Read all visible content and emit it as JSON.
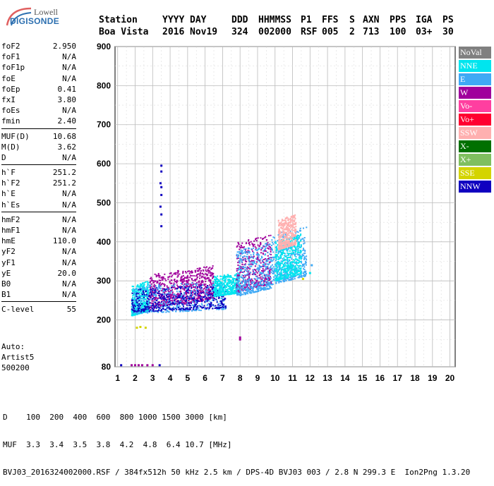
{
  "logo": {
    "line1": "Lowell",
    "line2": "DIGISONDE"
  },
  "header": {
    "labels": [
      "Station",
      "YYYY",
      "DAY",
      "DDD",
      "HHMMSS",
      "P1",
      "FFS",
      "S",
      "AXN",
      "PPS",
      "IGA",
      "PS"
    ],
    "values": [
      "Boa Vista",
      "2016",
      "Nov19",
      "324",
      "002000",
      "RSF",
      "005",
      "2",
      "713",
      "100",
      "03+",
      "30"
    ]
  },
  "params": {
    "group1": [
      {
        "label": "foF2",
        "value": "2.950"
      },
      {
        "label": "foF1",
        "value": "N/A"
      },
      {
        "label": "foF1p",
        "value": "N/A"
      },
      {
        "label": "foE",
        "value": "N/A"
      },
      {
        "label": "foEp",
        "value": "0.41"
      },
      {
        "label": "fxI",
        "value": "3.80"
      },
      {
        "label": "foEs",
        "value": "N/A"
      },
      {
        "label": "fmin",
        "value": "2.40"
      }
    ],
    "group2": [
      {
        "label": "MUF(D)",
        "value": "10.68"
      },
      {
        "label": "M(D)",
        "value": "3.62"
      },
      {
        "label": "D",
        "value": "N/A"
      }
    ],
    "group3": [
      {
        "label": "h`F",
        "value": "251.2"
      },
      {
        "label": "h`F2",
        "value": "251.2"
      },
      {
        "label": "h`E",
        "value": "N/A"
      },
      {
        "label": "h`Es",
        "value": "N/A"
      }
    ],
    "group4": [
      {
        "label": "hmF2",
        "value": "N/A"
      },
      {
        "label": "hmF1",
        "value": "N/A"
      },
      {
        "label": "hmE",
        "value": "110.0"
      },
      {
        "label": "yF2",
        "value": "N/A"
      },
      {
        "label": "yF1",
        "value": "N/A"
      },
      {
        "label": "yE",
        "value": "20.0"
      },
      {
        "label": "B0",
        "value": "N/A"
      },
      {
        "label": "B1",
        "value": "N/A"
      }
    ],
    "group5": [
      {
        "label": "C-level",
        "value": "55"
      }
    ]
  },
  "auto": {
    "line1": "Auto:",
    "line2": "Artist5",
    "line3": "500200"
  },
  "legend": [
    {
      "label": "NoVal",
      "color": "#808080"
    },
    {
      "label": "NNE",
      "color": "#00e5ee"
    },
    {
      "label": "E",
      "color": "#3fa9f5"
    },
    {
      "label": "W",
      "color": "#a0009c"
    },
    {
      "label": "Vo-",
      "color": "#ff3fa0"
    },
    {
      "label": "Vo+",
      "color": "#ff0030"
    },
    {
      "label": "SSW",
      "color": "#ffb0b0"
    },
    {
      "label": "X-",
      "color": "#007000"
    },
    {
      "label": "X+",
      "color": "#7fbf5f"
    },
    {
      "label": "SSE",
      "color": "#d4d400"
    },
    {
      "label": "NNW",
      "color": "#1000c0"
    }
  ],
  "bottom": {
    "d_line": "D    100  200  400  600  800 1000 1500 3000 [km]",
    "muf_line": "MUF  3.3  3.4  3.5  3.8  4.2  4.8  6.4 10.7 [MHz]",
    "info_line": "BVJ03_2016324002000.RSF / 384fx512h 50 kHz 2.5 km / DPS-4D BVJ03 003 / 2.8 N 299.3 E  Ion2Png 1.3.20"
  },
  "chart_data": {
    "type": "scatter",
    "x_ticks": [
      1,
      2,
      3,
      4,
      5,
      6,
      7,
      8,
      9,
      10,
      11,
      12,
      13,
      14,
      15,
      16,
      17,
      18,
      19,
      20
    ],
    "y_ticks": [
      80,
      200,
      300,
      400,
      500,
      600,
      700,
      800,
      900
    ],
    "xlim": [
      0.85,
      20.3
    ],
    "ylim": [
      80,
      900
    ],
    "grid": true,
    "clusters": [
      {
        "x": [
          1.8,
          2.8
        ],
        "y": [
          210,
          300
        ],
        "color": "#00e5ee"
      },
      {
        "x": [
          2.8,
          4.8
        ],
        "y": [
          230,
          330
        ],
        "color": "#a0009c"
      },
      {
        "x": [
          4.8,
          6.5
        ],
        "y": [
          240,
          340
        ],
        "color": "#a0009c"
      },
      {
        "x": [
          1.8,
          7.2
        ],
        "y": [
          215,
          300
        ],
        "color": "#3fa9f5"
      },
      {
        "x": [
          1.8,
          7.2
        ],
        "y": [
          220,
          290
        ],
        "color": "#1000c0"
      },
      {
        "x": [
          6.5,
          8.0
        ],
        "y": [
          260,
          320
        ],
        "color": "#00e5ee"
      },
      {
        "x": [
          7.8,
          9.8
        ],
        "y": [
          270,
          420
        ],
        "color": "#a0009c"
      },
      {
        "x": [
          7.8,
          9.8
        ],
        "y": [
          260,
          400
        ],
        "color": "#3fa9f5"
      },
      {
        "x": [
          9.8,
          11.8
        ],
        "y": [
          290,
          440
        ],
        "color": "#3fa9f5"
      },
      {
        "x": [
          10.0,
          11.5
        ],
        "y": [
          300,
          420
        ],
        "color": "#00e5ee"
      },
      {
        "x": [
          10.2,
          11.2
        ],
        "y": [
          380,
          470
        ],
        "color": "#ffb0b0"
      }
    ],
    "extras": [
      {
        "x": 3.5,
        "y": 595,
        "color": "#1000c0"
      },
      {
        "x": 3.5,
        "y": 580,
        "color": "#1000c0"
      },
      {
        "x": 3.45,
        "y": 550,
        "color": "#1000c0"
      },
      {
        "x": 3.5,
        "y": 540,
        "color": "#1000c0"
      },
      {
        "x": 3.5,
        "y": 520,
        "color": "#1000c0"
      },
      {
        "x": 3.45,
        "y": 490,
        "color": "#1000c0"
      },
      {
        "x": 3.5,
        "y": 470,
        "color": "#1000c0"
      },
      {
        "x": 3.5,
        "y": 440,
        "color": "#1000c0"
      },
      {
        "x": 8.0,
        "y": 155,
        "color": "#a0009c"
      },
      {
        "x": 8.0,
        "y": 150,
        "color": "#a0009c"
      },
      {
        "x": 2.1,
        "y": 180,
        "color": "#d4d400"
      },
      {
        "x": 2.3,
        "y": 182,
        "color": "#d4d400"
      },
      {
        "x": 2.6,
        "y": 180,
        "color": "#d4d400"
      },
      {
        "x": 1.2,
        "y": 84,
        "color": "#1000c0"
      },
      {
        "x": 1.8,
        "y": 84,
        "color": "#a0009c"
      },
      {
        "x": 2.0,
        "y": 84,
        "color": "#a0009c"
      },
      {
        "x": 2.2,
        "y": 84,
        "color": "#a0009c"
      },
      {
        "x": 2.4,
        "y": 84,
        "color": "#a0009c"
      },
      {
        "x": 2.7,
        "y": 84,
        "color": "#a0009c"
      },
      {
        "x": 3.0,
        "y": 84,
        "color": "#a0009c"
      },
      {
        "x": 3.4,
        "y": 84,
        "color": "#1000c0"
      },
      {
        "x": 12.1,
        "y": 340,
        "color": "#3fa9f5"
      },
      {
        "x": 12.0,
        "y": 320,
        "color": "#00e5ee"
      },
      {
        "x": 11.6,
        "y": 305,
        "color": "#d4d400"
      }
    ]
  }
}
